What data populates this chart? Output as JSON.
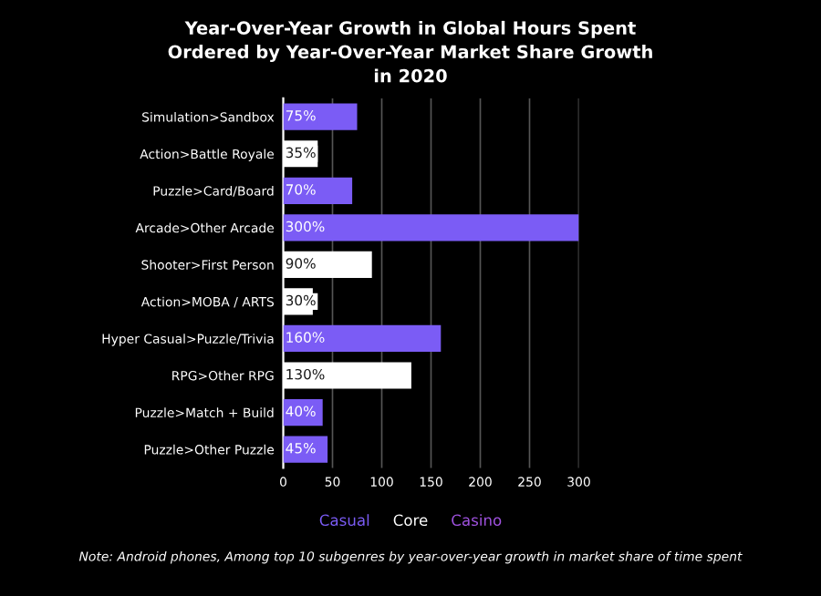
{
  "chart_data": {
    "type": "bar",
    "orientation": "horizontal",
    "title": "Year-Over-Year Growth in Global Hours Spent\nOrdered by Year-Over-Year Market Share Growth\nin 2020",
    "categories": [
      "Simulation>Sandbox",
      "Action>Battle Royale",
      "Puzzle>Card/Board",
      "Arcade>Other Arcade",
      "Shooter>First Person",
      "Action>MOBA / ARTS",
      "Hyper Casual>Puzzle/Trivia",
      "RPG>Other RPG",
      "Puzzle>Match + Build",
      "Puzzle>Other Puzzle"
    ],
    "series": [
      {
        "name": "Casual",
        "color": "#7b5cf5",
        "values": [
          75,
          null,
          70,
          300,
          null,
          null,
          160,
          null,
          40,
          45
        ],
        "value_labels": [
          "75%",
          null,
          "70%",
          "300%",
          null,
          null,
          "160%",
          null,
          "40%",
          "45%"
        ]
      },
      {
        "name": "Core",
        "color": "#ffffff",
        "values": [
          null,
          35,
          null,
          null,
          90,
          30,
          null,
          130,
          null,
          null
        ],
        "value_labels": [
          null,
          "35%",
          null,
          null,
          "90%",
          "30%",
          null,
          "130%",
          null,
          null
        ]
      },
      {
        "name": "Casino",
        "color": "#a052e0",
        "values": [
          null,
          null,
          null,
          null,
          null,
          null,
          null,
          null,
          null,
          null
        ]
      }
    ],
    "xlim": [
      0,
      300
    ],
    "xticks": [
      0,
      50,
      100,
      150,
      200,
      250,
      300
    ],
    "grid": "x",
    "legend": "bottom",
    "annotations": [
      "Note: Android phones, Among top 10 subgenres by year-over-year growth in market share of time spent"
    ]
  }
}
